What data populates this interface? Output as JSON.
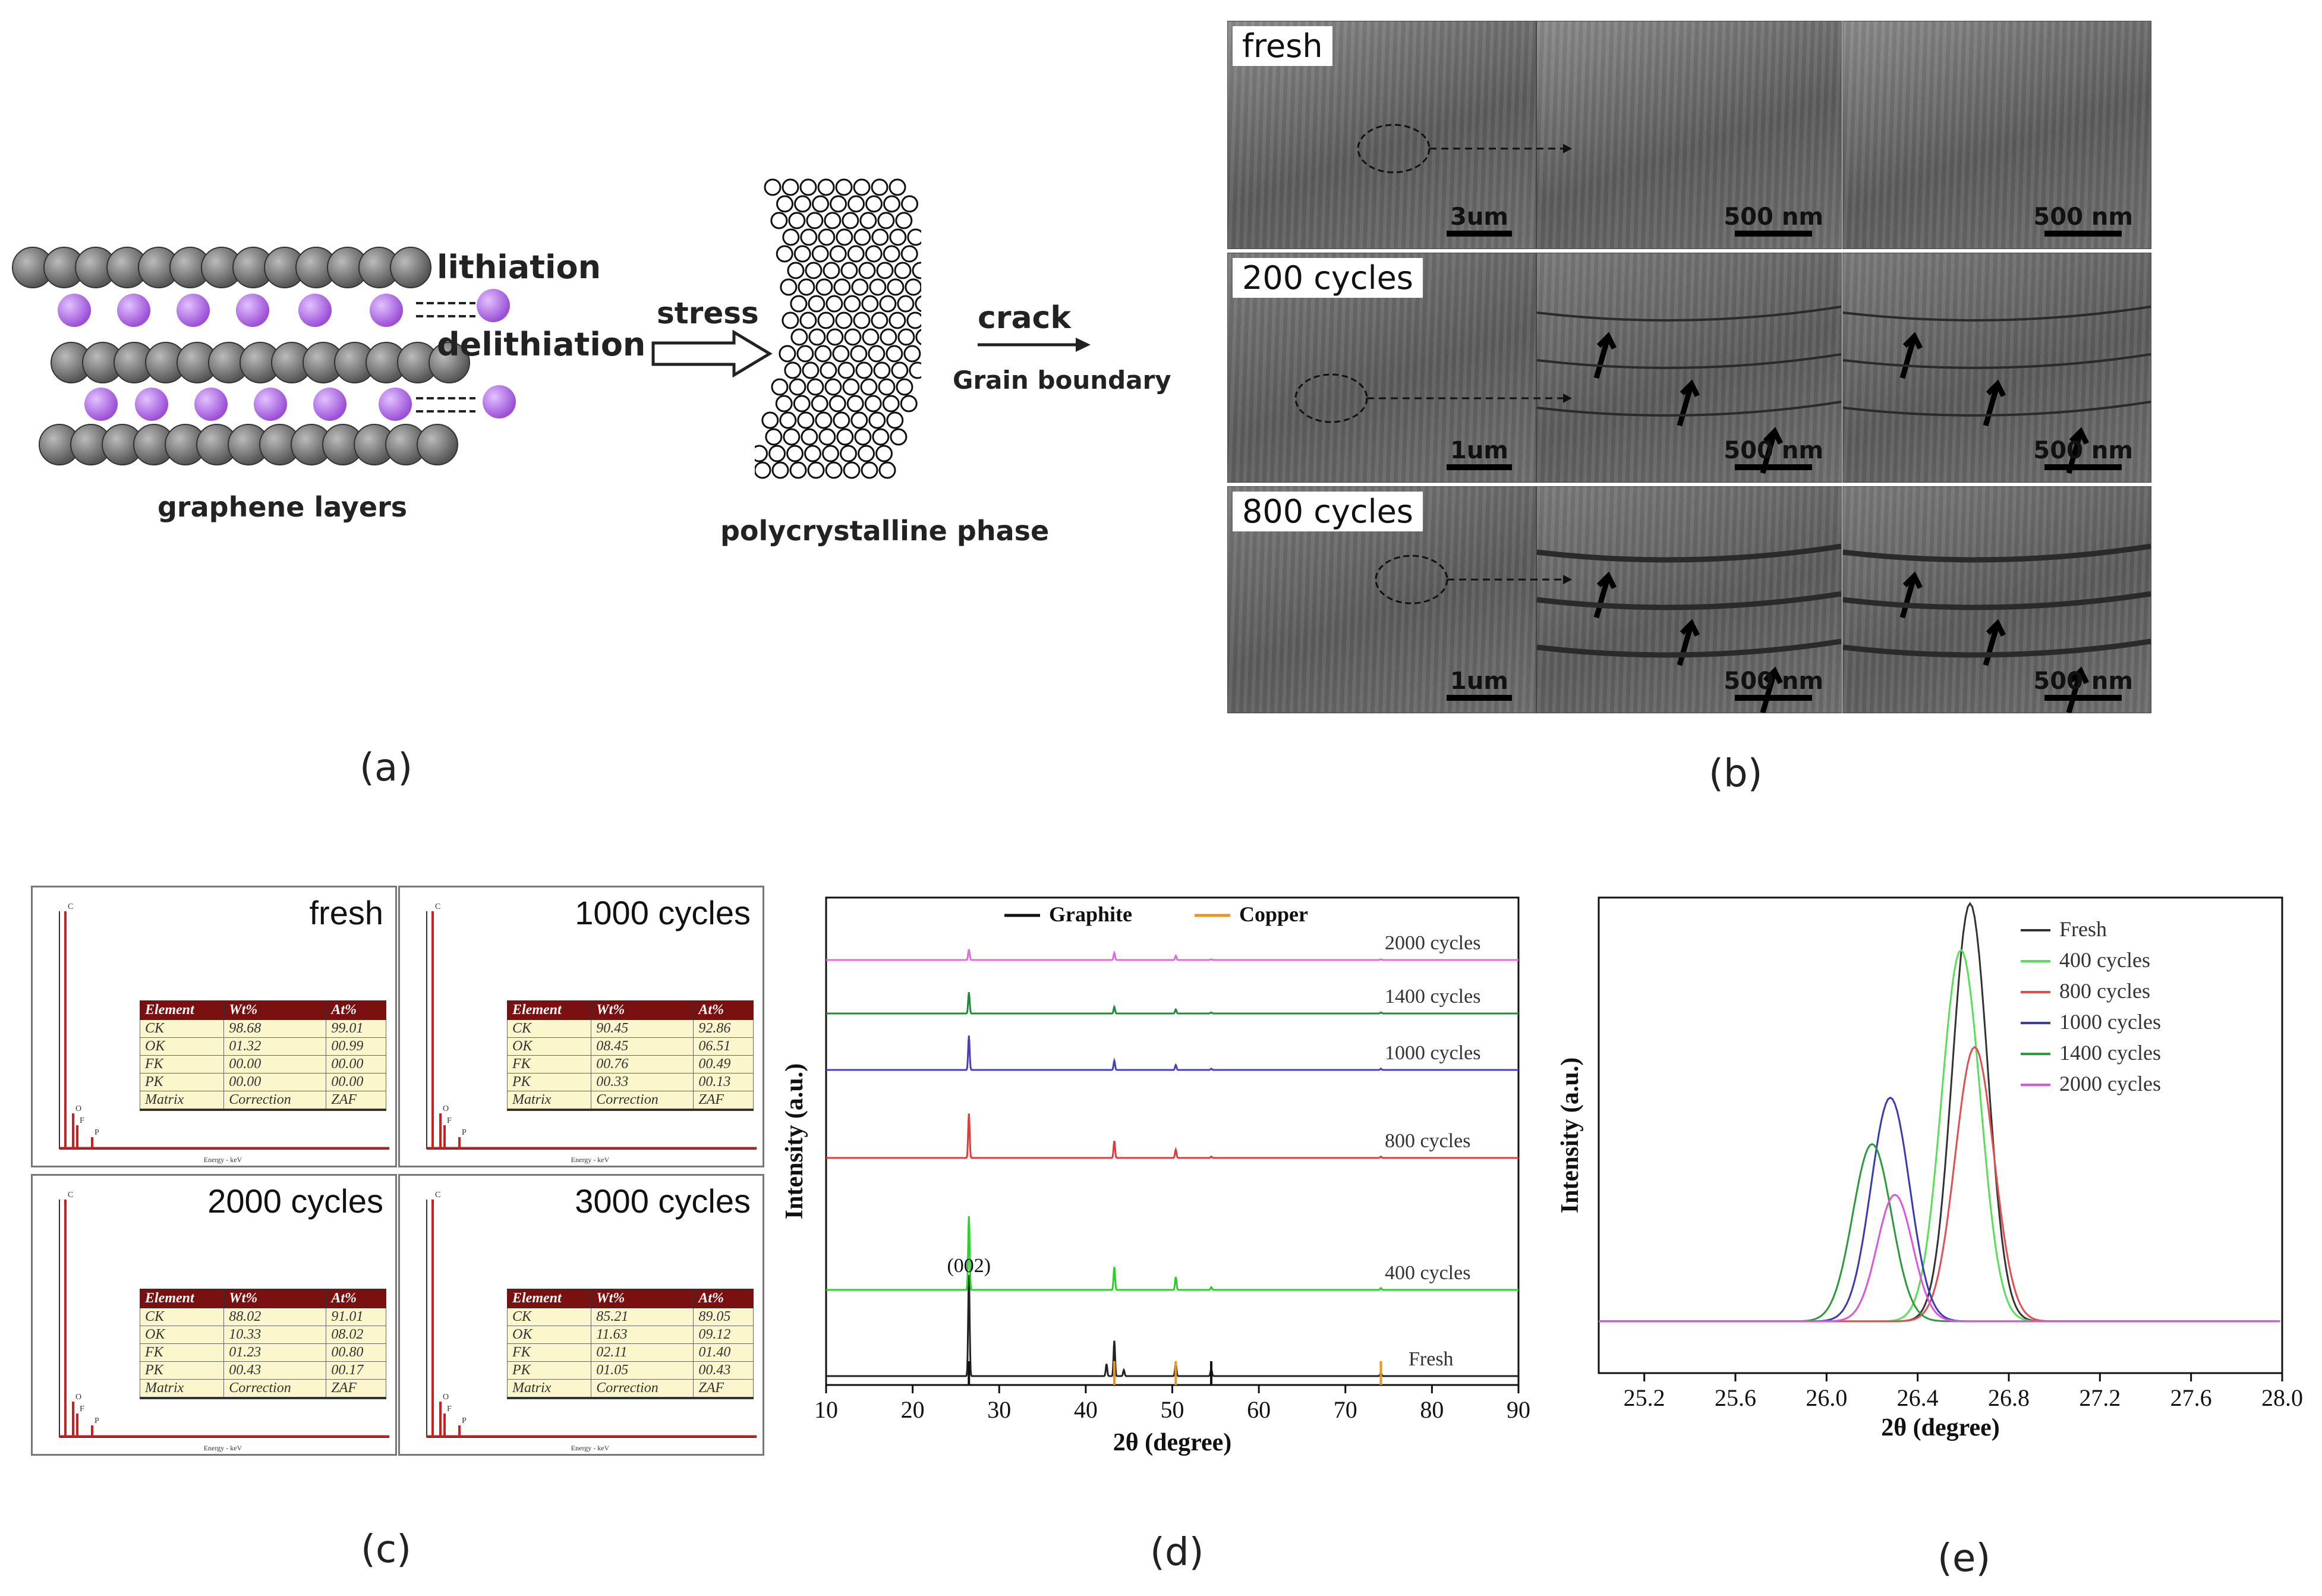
{
  "panel_labels": {
    "a": "(a)",
    "b": "(b)",
    "c": "(c)",
    "d": "(d)",
    "e": "(e)"
  },
  "schematic": {
    "lithiation": "lithiation",
    "delithiation": "delithiation",
    "graphene_layers": "graphene layers",
    "stress": "stress",
    "crack": "crack",
    "grain_boundary": "Grain boundary",
    "polycrystalline_phase": "polycrystalline phase",
    "carbon_color": "#555555",
    "lithium_color": "#9b4fd6"
  },
  "sem": {
    "rows": [
      {
        "label": "fresh",
        "scales": [
          "3um",
          "500 nm",
          "500 nm"
        ]
      },
      {
        "label": "200 cycles",
        "scales": [
          "1um",
          "500 nm",
          "500 nm"
        ]
      },
      {
        "label": "800 cycles",
        "scales": [
          "1um",
          "500 nm",
          "500 nm"
        ]
      }
    ]
  },
  "eds": {
    "headers": [
      "Element",
      "Wt%",
      "At%"
    ],
    "axis_label": "Energy - keV",
    "spectra_peaks": [
      "C",
      "O",
      "F",
      "P"
    ],
    "panels": [
      {
        "title": "fresh",
        "rows": [
          [
            "CK",
            "98.68",
            "99.01"
          ],
          [
            "OK",
            "01.32",
            "00.99"
          ],
          [
            "FK",
            "00.00",
            "00.00"
          ],
          [
            "PK",
            "00.00",
            "00.00"
          ],
          [
            "Matrix",
            "Correction",
            "ZAF"
          ]
        ]
      },
      {
        "title": "1000 cycles",
        "rows": [
          [
            "CK",
            "90.45",
            "92.86"
          ],
          [
            "OK",
            "08.45",
            "06.51"
          ],
          [
            "FK",
            "00.76",
            "00.49"
          ],
          [
            "PK",
            "00.33",
            "00.13"
          ],
          [
            "Matrix",
            "Correction",
            "ZAF"
          ]
        ]
      },
      {
        "title": "2000 cycles",
        "rows": [
          [
            "CK",
            "88.02",
            "91.01"
          ],
          [
            "OK",
            "10.33",
            "08.02"
          ],
          [
            "FK",
            "01.23",
            "00.80"
          ],
          [
            "PK",
            "00.43",
            "00.17"
          ],
          [
            "Matrix",
            "Correction",
            "ZAF"
          ]
        ]
      },
      {
        "title": "3000 cycles",
        "rows": [
          [
            "CK",
            "85.21",
            "89.05"
          ],
          [
            "OK",
            "11.63",
            "09.12"
          ],
          [
            "FK",
            "02.11",
            "01.40"
          ],
          [
            "PK",
            "01.05",
            "00.43"
          ],
          [
            "Matrix",
            "Correction",
            "ZAF"
          ]
        ]
      }
    ]
  },
  "chart_data": [
    {
      "type": "line",
      "panel": "d",
      "title": "",
      "xlabel": "2θ (degree)",
      "ylabel": "Intensity (a.u.)",
      "xlim": [
        10,
        90
      ],
      "xticks": [
        10,
        20,
        30,
        40,
        50,
        60,
        70,
        80,
        90
      ],
      "legend": [
        {
          "name": "Graphite",
          "color": "#111111"
        },
        {
          "name": "Copper",
          "color": "#e8961e"
        }
      ],
      "peak_annotation": "(002)",
      "reference_lines": {
        "graphite": [
          26.5,
          54.5
        ],
        "copper": [
          43.3,
          50.4,
          74.1
        ]
      },
      "series": [
        {
          "name": "Fresh",
          "color": "#222222",
          "peaks": [
            [
              26.5,
              1.0
            ],
            [
              42.4,
              0.12
            ],
            [
              44.4,
              0.06
            ],
            [
              43.3,
              0.35
            ],
            [
              50.4,
              0.12
            ],
            [
              54.5,
              0.07
            ],
            [
              74.1,
              0.03
            ]
          ]
        },
        {
          "name": "400 cycles",
          "color": "#2bd02b",
          "peaks": [
            [
              26.5,
              0.8
            ],
            [
              43.3,
              0.25
            ],
            [
              50.4,
              0.14
            ],
            [
              54.5,
              0.03
            ],
            [
              74.1,
              0.02
            ]
          ]
        },
        {
          "name": "800 cycles",
          "color": "#e03a3a",
          "peaks": [
            [
              26.5,
              0.65
            ],
            [
              43.3,
              0.25
            ],
            [
              50.4,
              0.12
            ],
            [
              54.5,
              0.02
            ],
            [
              74.1,
              0.02
            ]
          ]
        },
        {
          "name": "1000 cycles",
          "color": "#4a3fb8",
          "peaks": [
            [
              26.5,
              0.55
            ],
            [
              43.3,
              0.15
            ],
            [
              50.4,
              0.08
            ],
            [
              54.5,
              0.02
            ],
            [
              74.1,
              0.02
            ]
          ]
        },
        {
          "name": "1400 cycles",
          "color": "#228b3a",
          "peaks": [
            [
              26.5,
              0.42
            ],
            [
              43.3,
              0.13
            ],
            [
              50.4,
              0.08
            ],
            [
              54.5,
              0.02
            ],
            [
              74.1,
              0.02
            ]
          ]
        },
        {
          "name": "2000 cycles",
          "color": "#e06ae0",
          "peaks": [
            [
              26.5,
              0.3
            ],
            [
              43.3,
              0.2
            ],
            [
              50.4,
              0.12
            ],
            [
              54.5,
              0.02
            ],
            [
              74.1,
              0.02
            ]
          ]
        }
      ]
    },
    {
      "type": "line",
      "panel": "e",
      "title": "",
      "xlabel": "2θ (degree)",
      "ylabel": "Intensity (a.u.)",
      "xlim": [
        25.0,
        28.0
      ],
      "ylim": [
        0,
        1.05
      ],
      "xticks": [
        25.2,
        25.6,
        26.0,
        26.4,
        26.8,
        27.2,
        27.6,
        28.0
      ],
      "legend_position": "top-right",
      "series": [
        {
          "name": "Fresh",
          "color": "#333333",
          "center": 26.63,
          "height": 0.99,
          "width": 0.11
        },
        {
          "name": "400 cycles",
          "color": "#55e055",
          "center": 26.59,
          "height": 0.88,
          "width": 0.12
        },
        {
          "name": "800 cycles",
          "color": "#e05050",
          "center": 26.65,
          "height": 0.65,
          "width": 0.12
        },
        {
          "name": "1000 cycles",
          "color": "#3a3ab8",
          "center": 26.28,
          "height": 0.53,
          "width": 0.12
        },
        {
          "name": "1400 cycles",
          "color": "#2a9a3a",
          "center": 26.2,
          "height": 0.42,
          "width": 0.12
        },
        {
          "name": "2000 cycles",
          "color": "#dd55dd",
          "center": 26.3,
          "height": 0.3,
          "width": 0.11
        }
      ]
    }
  ]
}
